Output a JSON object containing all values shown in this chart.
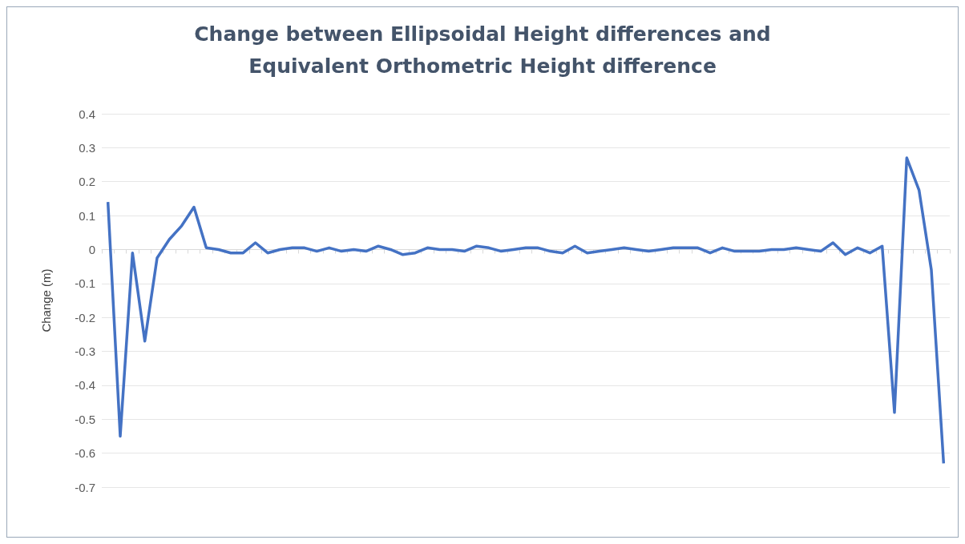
{
  "chart_data": {
    "type": "line",
    "title": "Change between Ellipsoidal Height differences and\nEquivalent Orthometric Height difference",
    "ylabel": "Change (m)",
    "categories": [
      null,
      null,
      null,
      null,
      null,
      null,
      null,
      null,
      null,
      null,
      null,
      null,
      null,
      null,
      null,
      null,
      null,
      null,
      null,
      null,
      null,
      null,
      null,
      null,
      null,
      null,
      null,
      null,
      null,
      null,
      null,
      null,
      null,
      null,
      null,
      null,
      null,
      null,
      null,
      null,
      null,
      null,
      null,
      null,
      null,
      null,
      null,
      null,
      null,
      null,
      null,
      null,
      null,
      null,
      null,
      null,
      null,
      null,
      null,
      null,
      null,
      null,
      null,
      null,
      null,
      null,
      null,
      null,
      null
    ],
    "series": [
      {
        "color": "#4472c4",
        "values": [
          0.14,
          -0.55,
          -0.01,
          -0.27,
          -0.025,
          0.03,
          0.07,
          0.125,
          0.005,
          0.0,
          -0.01,
          -0.01,
          0.02,
          -0.01,
          0.0,
          0.005,
          0.005,
          -0.005,
          0.005,
          -0.005,
          0.0,
          -0.005,
          0.01,
          0.0,
          -0.015,
          -0.01,
          0.005,
          0.0,
          0.0,
          -0.005,
          0.01,
          0.005,
          -0.005,
          0.0,
          0.005,
          0.005,
          -0.005,
          -0.01,
          0.01,
          -0.01,
          -0.005,
          0.0,
          0.005,
          0.0,
          -0.005,
          0.0,
          0.005,
          0.005,
          0.005,
          -0.01,
          0.005,
          -0.005,
          -0.005,
          -0.005,
          0.0,
          0.0,
          0.005,
          0.0,
          -0.005,
          0.02,
          -0.015,
          0.005,
          -0.01,
          0.01,
          -0.48,
          0.27,
          0.175,
          -0.06,
          -0.63
        ]
      }
    ],
    "ylim": [
      -0.7,
      0.4
    ],
    "yticks": [
      -0.7,
      -0.6,
      -0.5,
      -0.4,
      -0.3,
      -0.2,
      -0.1,
      0,
      0.1,
      0.2,
      0.3,
      0.4
    ],
    "grid": "y",
    "marker": "none",
    "line_style": "solid"
  }
}
